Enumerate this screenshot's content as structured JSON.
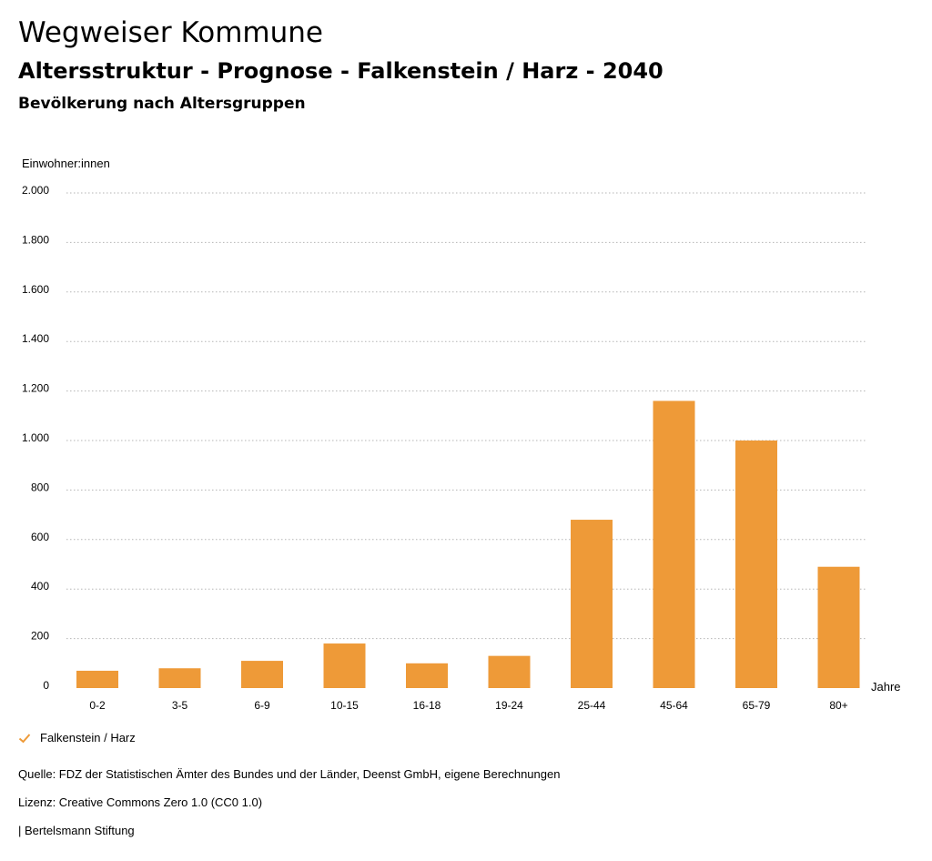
{
  "header": {
    "title": "Wegweiser Kommune",
    "subtitle": "Altersstruktur - Prognose - Falkenstein / Harz - 2040",
    "subsubtitle": "Bevölkerung nach Altersgruppen"
  },
  "chart_data": {
    "type": "bar",
    "title": "Bevölkerung nach Altersgruppen",
    "ylabel": "Einwohner:innen",
    "xlabel": "Jahre",
    "categories": [
      "0-2",
      "3-5",
      "6-9",
      "10-15",
      "16-18",
      "19-24",
      "25-44",
      "45-64",
      "65-79",
      "80+"
    ],
    "series": [
      {
        "name": "Falkenstein / Harz",
        "values": [
          70,
          80,
          110,
          180,
          100,
          130,
          680,
          1160,
          1000,
          490
        ]
      }
    ],
    "ylim": [
      0,
      2000
    ],
    "yticks": [
      0,
      200,
      400,
      600,
      800,
      1000,
      1200,
      1400,
      1600,
      1800,
      2000
    ],
    "ytick_labels": [
      "0",
      "200",
      "400",
      "600",
      "800",
      "1.000",
      "1.200",
      "1.400",
      "1.600",
      "1.800",
      "2.000"
    ],
    "grid": true,
    "legend_position": "bottom-left",
    "bar_color": "#ee9a38"
  },
  "legend": {
    "label": "Falkenstein / Harz",
    "icon": "check-icon"
  },
  "footer": {
    "source": "Quelle: FDZ der Statistischen Ämter des Bundes und der Länder, Deenst GmbH, eigene Berechnungen",
    "license": "Lizenz: Creative Commons Zero 1.0 (CC0 1.0)",
    "publisher": "| Bertelsmann Stiftung"
  }
}
